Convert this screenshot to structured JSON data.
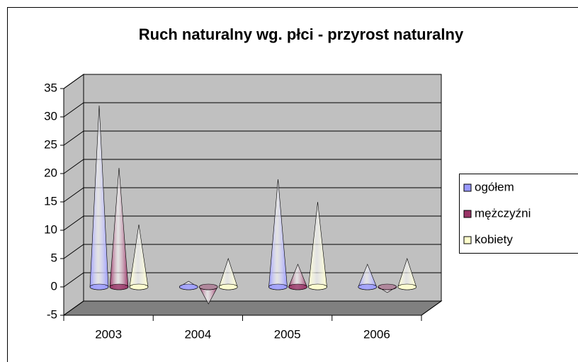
{
  "chart_data": {
    "type": "cone3d",
    "title": "Ruch naturalny wg. płci - przyrost naturalny",
    "categories": [
      "2003",
      "2004",
      "2005",
      "2006"
    ],
    "series": [
      {
        "name": "ogółem",
        "color": "#9999ff",
        "values": [
          32,
          1,
          19,
          4
        ]
      },
      {
        "name": "mężczyźni",
        "color": "#993366",
        "values": [
          21,
          -3,
          4,
          -1
        ]
      },
      {
        "name": "kobiety",
        "color": "#ffffcc",
        "values": [
          11,
          5,
          15,
          5
        ]
      }
    ],
    "ylim": [
      -5,
      35
    ],
    "yticks": [
      -5,
      0,
      5,
      10,
      15,
      20,
      25,
      30,
      35
    ],
    "grid": true,
    "legend": "right"
  }
}
